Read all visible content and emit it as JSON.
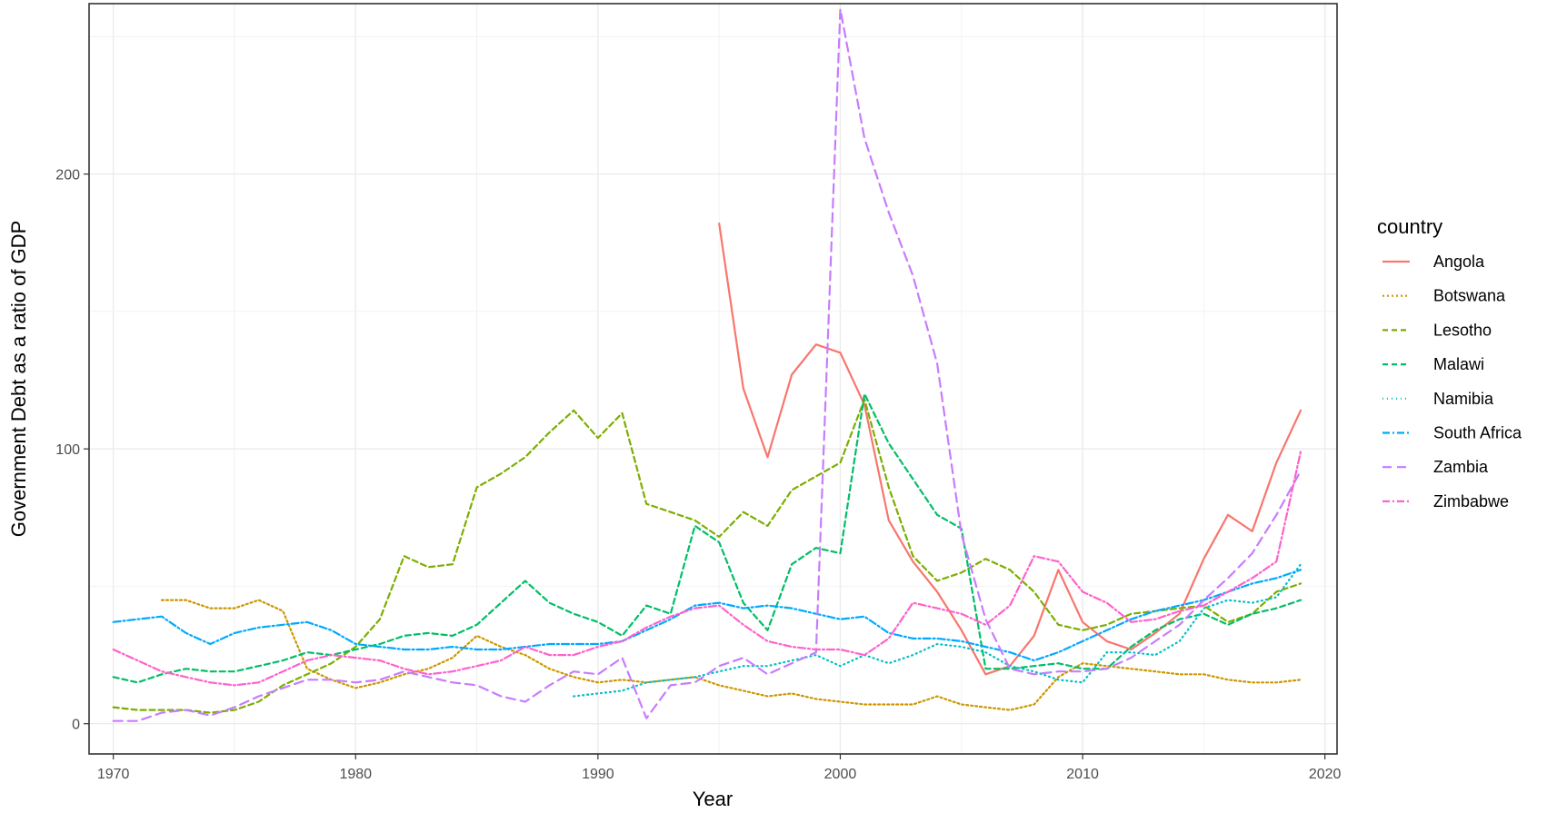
{
  "chart_data": {
    "type": "line",
    "xlabel": "Year",
    "ylabel": "Government Debt as a ratio of GDP",
    "xlim": [
      1969,
      2020.5
    ],
    "ylim": [
      -11,
      262
    ],
    "x_ticks": [
      1970,
      1980,
      1990,
      2000,
      2010,
      2020
    ],
    "y_ticks": [
      0,
      100,
      200
    ],
    "grid": true,
    "legend_title": "country",
    "legend_position": "right",
    "series": [
      {
        "name": "Angola",
        "color": "#F8766D",
        "dash": "",
        "x": [
          1995,
          1996,
          1997,
          1998,
          1999,
          2000,
          2001,
          2002,
          2003,
          2004,
          2005,
          2006,
          2007,
          2008,
          2009,
          2010,
          2011,
          2012,
          2013,
          2014,
          2015,
          2016,
          2017,
          2018,
          2019
        ],
        "y": [
          182,
          122,
          97,
          127,
          138,
          135,
          116,
          74,
          59,
          48,
          34,
          18,
          21,
          32,
          56,
          37,
          30,
          27,
          33,
          40,
          60,
          76,
          70,
          95,
          114
        ]
      },
      {
        "name": "Botswana",
        "color": "#CD9600",
        "dash": "2,3",
        "x": [
          1972,
          1973,
          1974,
          1975,
          1976,
          1977,
          1978,
          1979,
          1980,
          1981,
          1982,
          1983,
          1984,
          1985,
          1986,
          1987,
          1988,
          1989,
          1990,
          1991,
          1992,
          1993,
          1994,
          1995,
          1996,
          1997,
          1998,
          1999,
          2000,
          2001,
          2002,
          2003,
          2004,
          2005,
          2006,
          2007,
          2008,
          2009,
          2010,
          2011,
          2012,
          2013,
          2014,
          2015,
          2016,
          2017,
          2018,
          2019
        ],
        "y": [
          45,
          45,
          42,
          42,
          45,
          41,
          20,
          16,
          13,
          15,
          18,
          20,
          24,
          32,
          28,
          25,
          20,
          17,
          15,
          16,
          15,
          16,
          17,
          14,
          12,
          10,
          11,
          9,
          8,
          7,
          7,
          7,
          10,
          7,
          6,
          5,
          7,
          17,
          22,
          21,
          20,
          19,
          18,
          18,
          16,
          15,
          15,
          16
        ]
      },
      {
        "name": "Lesotho",
        "color": "#7CAE00",
        "dash": "6,4",
        "x": [
          1970,
          1971,
          1972,
          1973,
          1974,
          1975,
          1976,
          1977,
          1978,
          1979,
          1980,
          1981,
          1982,
          1983,
          1984,
          1985,
          1986,
          1987,
          1988,
          1989,
          1990,
          1991,
          1992,
          1993,
          1994,
          1995,
          1996,
          1997,
          1998,
          1999,
          2000,
          2001,
          2002,
          2003,
          2004,
          2005,
          2006,
          2007,
          2008,
          2009,
          2010,
          2011,
          2012,
          2013,
          2014,
          2015,
          2016,
          2017,
          2018,
          2019
        ],
        "y": [
          6,
          5,
          5,
          5,
          4,
          5,
          8,
          14,
          18,
          22,
          28,
          38,
          61,
          57,
          58,
          86,
          91,
          97,
          106,
          114,
          104,
          113,
          80,
          77,
          74,
          68,
          77,
          72,
          85,
          90,
          95,
          118,
          86,
          61,
          52,
          55,
          60,
          56,
          48,
          36,
          34,
          36,
          40,
          41,
          42,
          43,
          37,
          40,
          48,
          51
        ]
      },
      {
        "name": "Malawi",
        "color": "#00BE67",
        "dash": "6,4",
        "x": [
          1970,
          1971,
          1972,
          1973,
          1974,
          1975,
          1976,
          1977,
          1978,
          1979,
          1980,
          1981,
          1982,
          1983,
          1984,
          1985,
          1986,
          1987,
          1988,
          1989,
          1990,
          1991,
          1992,
          1993,
          1994,
          1995,
          1996,
          1997,
          1998,
          1999,
          2000,
          2001,
          2002,
          2003,
          2004,
          2005,
          2006,
          2007,
          2008,
          2009,
          2010,
          2011,
          2012,
          2013,
          2014,
          2015,
          2016,
          2017,
          2018,
          2019
        ],
        "y": [
          17,
          15,
          18,
          20,
          19,
          19,
          21,
          23,
          26,
          25,
          27,
          29,
          32,
          33,
          32,
          36,
          44,
          52,
          44,
          40,
          37,
          32,
          43,
          40,
          72,
          66,
          44,
          34,
          58,
          64,
          62,
          120,
          102,
          89,
          76,
          71,
          20,
          20,
          21,
          22,
          20,
          20,
          28,
          34,
          38,
          40,
          36,
          40,
          42,
          45
        ]
      },
      {
        "name": "Namibia",
        "color": "#00BFC4",
        "dash": "1,4",
        "x": [
          1989,
          1990,
          1991,
          1992,
          1993,
          1994,
          1995,
          1996,
          1997,
          1998,
          1999,
          2000,
          2001,
          2002,
          2003,
          2004,
          2005,
          2006,
          2007,
          2008,
          2009,
          2010,
          2011,
          2012,
          2013,
          2014,
          2015,
          2016,
          2017,
          2018,
          2019
        ],
        "y": [
          10,
          11,
          12,
          15,
          16,
          17,
          19,
          21,
          21,
          23,
          25,
          21,
          25,
          22,
          25,
          29,
          28,
          26,
          21,
          19,
          16,
          15,
          26,
          26,
          25,
          30,
          42,
          45,
          44,
          46,
          58
        ]
      },
      {
        "name": "South Africa",
        "color": "#00A9FF",
        "dash": "8,3,2,3",
        "x": [
          1970,
          1971,
          1972,
          1973,
          1974,
          1975,
          1976,
          1977,
          1978,
          1979,
          1980,
          1981,
          1982,
          1983,
          1984,
          1985,
          1986,
          1987,
          1988,
          1989,
          1990,
          1991,
          1992,
          1993,
          1994,
          1995,
          1996,
          1997,
          1998,
          1999,
          2000,
          2001,
          2002,
          2003,
          2004,
          2005,
          2006,
          2007,
          2008,
          2009,
          2010,
          2011,
          2012,
          2013,
          2014,
          2015,
          2016,
          2017,
          2018,
          2019
        ],
        "y": [
          37,
          38,
          39,
          33,
          29,
          33,
          35,
          36,
          37,
          34,
          29,
          28,
          27,
          27,
          28,
          27,
          27,
          28,
          29,
          29,
          29,
          30,
          34,
          38,
          43,
          44,
          42,
          43,
          42,
          40,
          38,
          39,
          33,
          31,
          31,
          30,
          28,
          26,
          23,
          26,
          30,
          34,
          38,
          41,
          43,
          45,
          48,
          51,
          53,
          56
        ]
      },
      {
        "name": "Zambia",
        "color": "#C77CFF",
        "dash": "10,6",
        "x": [
          1970,
          1971,
          1972,
          1973,
          1974,
          1975,
          1976,
          1977,
          1978,
          1979,
          1980,
          1981,
          1982,
          1983,
          1984,
          1985,
          1986,
          1987,
          1988,
          1989,
          1990,
          1991,
          1992,
          1993,
          1994,
          1995,
          1996,
          1997,
          1998,
          1999,
          2000,
          2001,
          2002,
          2003,
          2004,
          2005,
          2006,
          2007,
          2008,
          2009,
          2010,
          2011,
          2012,
          2013,
          2014,
          2015,
          2016,
          2017,
          2018,
          2019
        ],
        "y": [
          1,
          1,
          4,
          5,
          3,
          6,
          10,
          13,
          16,
          16,
          15,
          16,
          19,
          17,
          15,
          14,
          10,
          8,
          14,
          19,
          18,
          24,
          2,
          14,
          15,
          21,
          24,
          18,
          22,
          26,
          260,
          213,
          186,
          163,
          131,
          69,
          38,
          20,
          18,
          19,
          19,
          20,
          24,
          30,
          36,
          45,
          53,
          62,
          76,
          92
        ]
      },
      {
        "name": "Zimbabwe",
        "color": "#FF61CC",
        "dash": "8,3,2,3",
        "x": [
          1970,
          1971,
          1972,
          1973,
          1974,
          1975,
          1976,
          1977,
          1978,
          1979,
          1980,
          1981,
          1982,
          1983,
          1984,
          1985,
          1986,
          1987,
          1988,
          1989,
          1990,
          1991,
          1992,
          1993,
          1994,
          1995,
          1996,
          1997,
          1998,
          1999,
          2000,
          2001,
          2002,
          2003,
          2004,
          2005,
          2006,
          2007,
          2008,
          2009,
          2010,
          2011,
          2012,
          2013,
          2014,
          2015,
          2016,
          2017,
          2018,
          2019
        ],
        "y": [
          27,
          23,
          19,
          17,
          15,
          14,
          15,
          19,
          23,
          25,
          24,
          23,
          20,
          18,
          19,
          21,
          23,
          28,
          25,
          25,
          28,
          30,
          35,
          39,
          42,
          43,
          36,
          30,
          28,
          27,
          27,
          25,
          31,
          44,
          42,
          40,
          36,
          43,
          61,
          59,
          48,
          44,
          37,
          38,
          41,
          43,
          48,
          53,
          59,
          99
        ]
      }
    ]
  }
}
